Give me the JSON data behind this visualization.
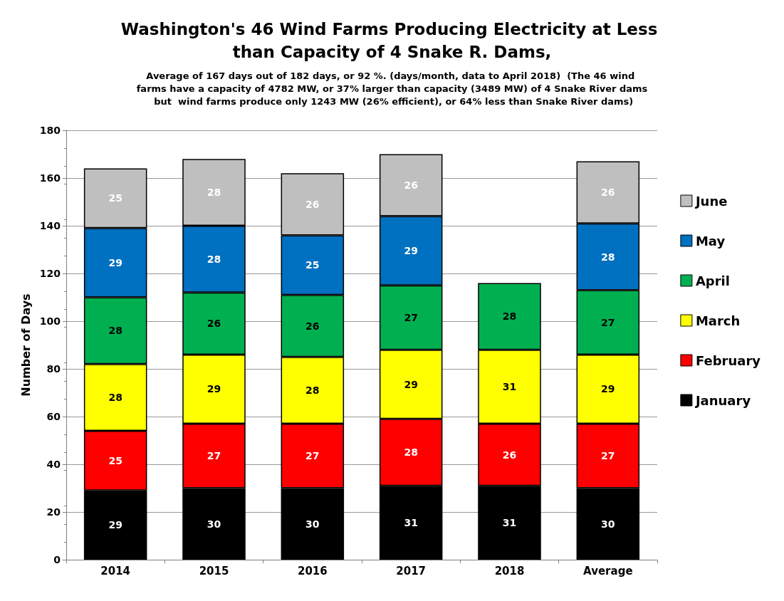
{
  "chart_data": {
    "type": "bar",
    "stacked": true,
    "title": "Washington's 46 Wind Farms Producing Electricity at Less than Capacity of 4 Snake R. Dams,",
    "subtitle": "Average of 167 days out of 182 days, or 92 %. (days/month, data to April 2018)  (The 46 wind farms have a capacity of 4782 MW, or 37% larger than capacity (3489 MW) of 4 Snake River dams but  wind farms produce only 1243 MW (26% efficient), or 64% less than Snake River dams)",
    "ylabel": "Number of Days",
    "categories": [
      "2014",
      "2015",
      "2016",
      "2017",
      "2018",
      "Average"
    ],
    "series": [
      {
        "name": "January",
        "color": "#000000",
        "values": [
          29,
          30,
          30,
          31,
          31,
          30
        ]
      },
      {
        "name": "February",
        "color": "#ff0000",
        "values": [
          25,
          27,
          27,
          28,
          26,
          27
        ]
      },
      {
        "name": "March",
        "color": "#ffff00",
        "values": [
          28,
          29,
          28,
          29,
          31,
          29
        ]
      },
      {
        "name": "April",
        "color": "#00b050",
        "values": [
          28,
          26,
          26,
          27,
          28,
          27
        ]
      },
      {
        "name": "May",
        "color": "#0070c0",
        "values": [
          29,
          28,
          25,
          29,
          null,
          28
        ]
      },
      {
        "name": "June",
        "color": "#bfbfbf",
        "values": [
          25,
          28,
          26,
          26,
          null,
          26
        ]
      }
    ],
    "ylim": [
      0,
      180
    ],
    "yticks": [
      0,
      20,
      40,
      60,
      80,
      100,
      120,
      140,
      160,
      180
    ],
    "grid": "y",
    "legend": "right",
    "data_labels": true
  }
}
